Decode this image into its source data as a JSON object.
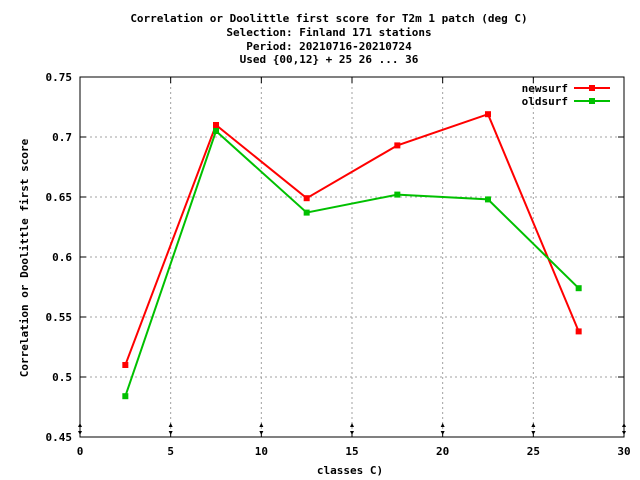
{
  "chart_data": {
    "type": "line",
    "title_lines": [
      "Correlation or Doolittle first score  for T2m 1 patch (deg C)",
      "Selection: Finland    171 stations",
      "Period: 20210716-20210724",
      "Used {00,12} + 25 26 ... 36"
    ],
    "xlabel": "classes C)",
    "ylabel": "Correlation or Doolittle first score",
    "xlim": [
      0,
      30
    ],
    "ylim": [
      0.45,
      0.75
    ],
    "xticks": [
      "0",
      "5",
      "10",
      "15",
      "20",
      "25",
      "30"
    ],
    "yticks": [
      "0.45",
      "0.5",
      "0.55",
      "0.6",
      "0.65",
      "0.7",
      "0.75"
    ],
    "grid": true,
    "legend_position": "top-right",
    "series": [
      {
        "name": "newsurf",
        "color": "#ff0000",
        "x": [
          2.5,
          7.5,
          12.5,
          17.5,
          22.5,
          27.5
        ],
        "y": [
          0.51,
          0.71,
          0.649,
          0.693,
          0.719,
          0.538
        ]
      },
      {
        "name": "oldsurf",
        "color": "#00c000",
        "x": [
          2.5,
          7.5,
          12.5,
          17.5,
          22.5,
          27.5
        ],
        "y": [
          0.484,
          0.705,
          0.637,
          0.652,
          0.648,
          0.574
        ]
      }
    ]
  }
}
